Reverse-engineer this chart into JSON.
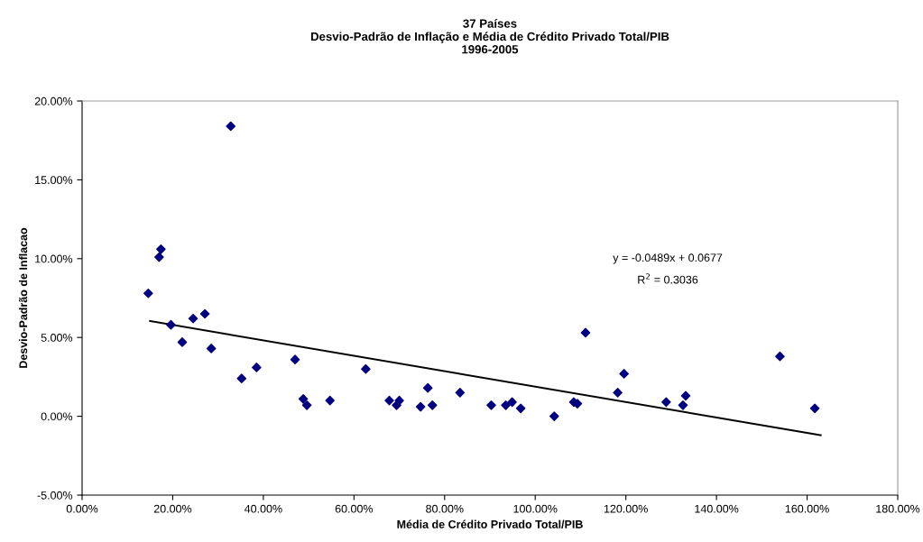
{
  "chart_data": {
    "type": "scatter",
    "title": "37 Países\nDesvio-Padrão de Inflação e Média de Crédito Privado Total/PIB\n1996-2005",
    "xlabel": "Média de Crédito Privado Total/PIB",
    "ylabel": "Desvio-Padrão de Inflacao",
    "series": [
      {
        "color": "#000080",
        "marker": "diamond",
        "x": [
          14.6,
          17.0,
          17.4,
          19.6,
          22.1,
          24.5,
          27.1,
          28.5,
          32.8,
          35.2,
          38.5,
          47.0,
          48.8,
          49.6,
          54.7,
          62.6,
          67.8,
          69.4,
          70.0,
          74.7,
          76.3,
          77.3,
          83.4,
          90.3,
          93.5,
          94.9,
          96.8,
          104.2,
          108.5,
          109.3,
          111.1,
          118.2,
          119.6,
          128.9,
          132.6,
          133.2,
          154.0,
          161.7
        ],
        "values": [
          7.8,
          10.1,
          10.6,
          5.8,
          4.7,
          6.2,
          6.5,
          4.3,
          18.4,
          2.4,
          3.1,
          3.6,
          1.1,
          0.7,
          1.0,
          3.0,
          1.0,
          0.7,
          1.0,
          0.6,
          1.8,
          0.7,
          1.5,
          0.7,
          0.7,
          0.9,
          0.5,
          0.0,
          0.9,
          0.8,
          5.3,
          1.5,
          2.7,
          0.9,
          0.7,
          1.3,
          3.8,
          0.5
        ]
      },
      {
        "type": "line",
        "color": "#000000",
        "marker": "none",
        "x": [
          15.0,
          163.0
        ],
        "values": [
          6.04,
          -1.2
        ]
      }
    ],
    "annotations": [
      "y = -0.0489x + 0.0677",
      "R$^{2}$ = 0.3036"
    ],
    "xlim": [
      0,
      180
    ],
    "xticks": [
      {
        "value": 0,
        "label": "0.00%"
      },
      {
        "value": 20,
        "label": "20.00%"
      },
      {
        "value": 40,
        "label": "40.00%"
      },
      {
        "value": 60,
        "label": "60.00%"
      },
      {
        "value": 80,
        "label": "80.00%"
      },
      {
        "value": 100,
        "label": "100.00%"
      },
      {
        "value": 120,
        "label": "120.00%"
      },
      {
        "value": 140,
        "label": "140.00%"
      },
      {
        "value": 160,
        "label": "160.00%"
      },
      {
        "value": 180,
        "label": "180.00%"
      }
    ],
    "ylim": [
      -5,
      20
    ],
    "yticks": [
      {
        "value": -5,
        "label": "-5.00%"
      },
      {
        "value": 0,
        "label": "0.00%"
      },
      {
        "value": 5,
        "label": "5.00%"
      },
      {
        "value": 10,
        "label": "10.00%"
      },
      {
        "value": 15,
        "label": "15.00%"
      },
      {
        "value": 20,
        "label": "20.00%"
      }
    ],
    "grid": false,
    "legend": false
  }
}
